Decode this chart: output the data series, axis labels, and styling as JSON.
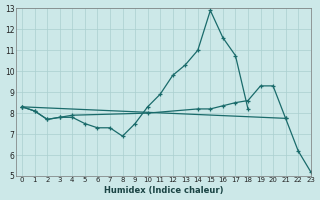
{
  "xlabel": "Humidex (Indice chaleur)",
  "bg_color": "#cce8e8",
  "grid_color": "#aacfcf",
  "line_color": "#1a6b6b",
  "xlim": [
    -0.5,
    23
  ],
  "ylim": [
    5,
    13
  ],
  "xticks": [
    0,
    1,
    2,
    3,
    4,
    5,
    6,
    7,
    8,
    9,
    10,
    11,
    12,
    13,
    14,
    15,
    16,
    17,
    18,
    19,
    20,
    21,
    22,
    23
  ],
  "yticks": [
    5,
    6,
    7,
    8,
    9,
    10,
    11,
    12,
    13
  ],
  "line1_x": [
    0,
    1,
    2,
    3,
    4,
    5,
    6,
    7,
    8,
    9,
    10,
    11,
    12,
    13,
    14,
    15,
    16,
    17,
    18
  ],
  "line1_y": [
    8.3,
    8.1,
    7.7,
    7.8,
    7.8,
    7.5,
    7.3,
    7.3,
    6.9,
    7.5,
    8.3,
    8.9,
    9.8,
    10.3,
    11.0,
    12.9,
    11.6,
    10.75,
    8.2
  ],
  "line2_x": [
    0,
    1,
    2,
    3,
    4,
    10,
    14,
    15,
    16,
    17,
    18,
    19,
    20,
    21
  ],
  "line2_y": [
    8.3,
    8.1,
    7.7,
    7.8,
    7.9,
    8.0,
    8.2,
    8.2,
    8.35,
    8.5,
    8.6,
    9.3,
    9.3,
    7.75
  ],
  "line3_x": [
    0,
    21,
    22,
    23
  ],
  "line3_y": [
    8.3,
    7.75,
    6.2,
    5.2
  ]
}
